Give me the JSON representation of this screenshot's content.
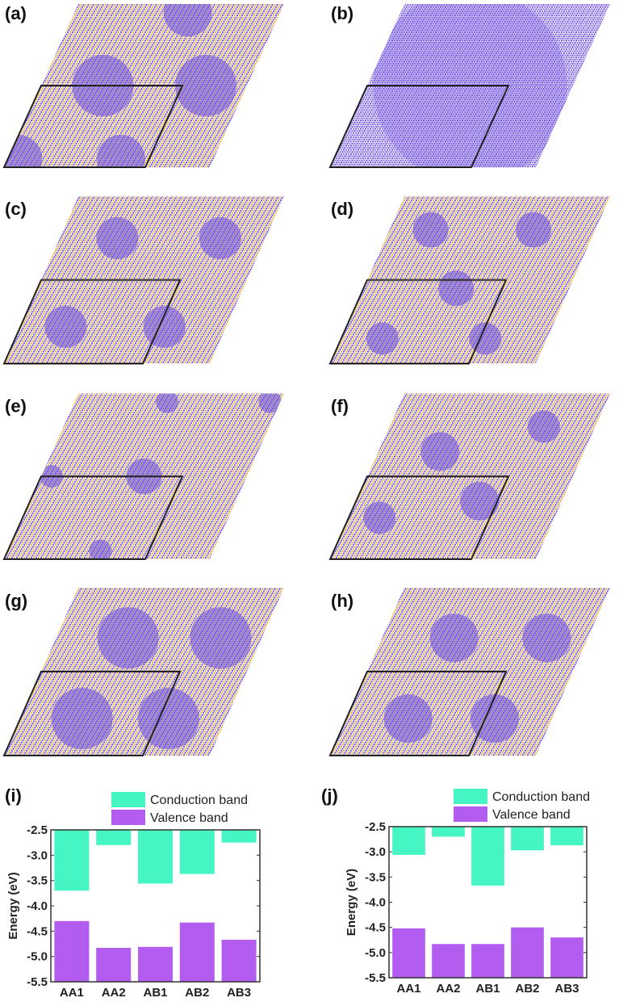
{
  "panels": [
    {
      "label": "(a)",
      "pattern": "aa-moire"
    },
    {
      "label": "(b)",
      "pattern": "dense-uniform"
    },
    {
      "label": "(c)",
      "pattern": "circular-domains"
    },
    {
      "label": "(d)",
      "pattern": "hexagonal-domains"
    },
    {
      "label": "(e)",
      "pattern": "star-domains"
    },
    {
      "label": "(f)",
      "pattern": "diagonal-stripes"
    },
    {
      "label": "(g)",
      "pattern": "triangular-domains"
    },
    {
      "label": "(h)",
      "pattern": "triangular-domains-small"
    }
  ],
  "colors": {
    "atom_a": "#6a4ce0",
    "atom_b": "#e8b23a",
    "conduction": "#45f5c3",
    "valence": "#b25cf0",
    "cell": "#222222"
  },
  "chart_data": [
    {
      "panel_label": "(i)",
      "type": "bar",
      "categories": [
        "AA1",
        "AA2",
        "AB1",
        "AB2",
        "AB3"
      ],
      "series": [
        {
          "name": "Conduction band",
          "values": [
            -3.7,
            -2.8,
            -3.56,
            -3.37,
            -2.75
          ]
        },
        {
          "name": "Valence band",
          "values": [
            -4.3,
            -4.83,
            -4.81,
            -4.33,
            -4.67
          ]
        }
      ],
      "ylabel": "Energy (eV)",
      "ylim": [
        -5.5,
        -2.5
      ],
      "yticks": [
        "-2.5",
        "-3.0",
        "-3.5",
        "-4.0",
        "-4.5",
        "-5.0",
        "-5.5"
      ],
      "legend": "top-center",
      "grid": false
    },
    {
      "panel_label": "(j)",
      "type": "bar",
      "categories": [
        "AA1",
        "AA2",
        "AB1",
        "AB2",
        "AB3"
      ],
      "series": [
        {
          "name": "Conduction band",
          "values": [
            -3.06,
            -2.7,
            -3.67,
            -2.97,
            -2.87
          ]
        },
        {
          "name": "Valence band",
          "values": [
            -4.52,
            -4.83,
            -4.83,
            -4.5,
            -4.7
          ]
        }
      ],
      "ylabel": "Energy (eV)",
      "ylim": [
        -5.5,
        -2.5
      ],
      "yticks": [
        "-2.5",
        "-3.0",
        "-3.5",
        "-4.0",
        "-4.5",
        "-5.0",
        "-5.5"
      ],
      "legend": "top-center",
      "grid": false
    }
  ]
}
